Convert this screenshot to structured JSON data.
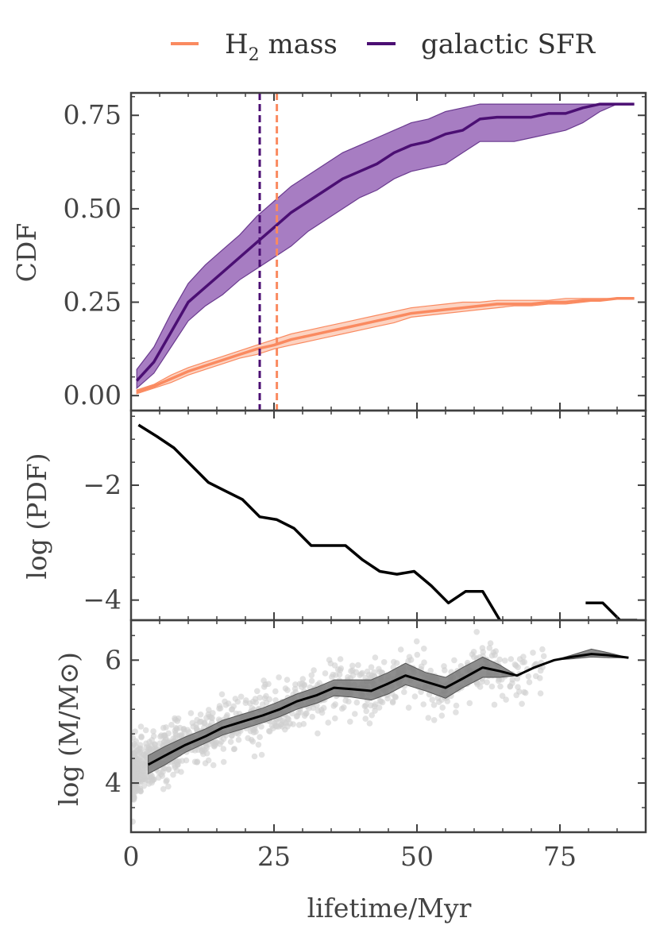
{
  "legend": {
    "items": [
      {
        "label": "H",
        "sub": "2",
        "suffix": " mass",
        "color": "#fa8a60"
      },
      {
        "label": "galactic SFR",
        "color": "#4b0f73"
      }
    ]
  },
  "chart_data": [
    {
      "type": "area",
      "panel": "cdf",
      "ylabel": "CDF",
      "xlim": [
        0,
        90
      ],
      "ylim": [
        -0.04,
        0.81
      ],
      "yticks": [
        0.0,
        0.25,
        0.5,
        0.75
      ],
      "ytick_labels": [
        "0.00",
        "0.25",
        "0.50",
        "0.75"
      ],
      "series": [
        {
          "name": "galactic SFR",
          "color": "#4b0f73",
          "band_color": "#8a52ad",
          "x": [
            1,
            4,
            7,
            10,
            13,
            16,
            19,
            22,
            25,
            28,
            31,
            34,
            37,
            40,
            43,
            46,
            49,
            52,
            55,
            58,
            61,
            64,
            67,
            70,
            73,
            76,
            79,
            82,
            85,
            88
          ],
          "values": [
            0.04,
            0.09,
            0.17,
            0.25,
            0.29,
            0.33,
            0.37,
            0.41,
            0.45,
            0.49,
            0.52,
            0.55,
            0.58,
            0.6,
            0.62,
            0.65,
            0.67,
            0.68,
            0.7,
            0.71,
            0.74,
            0.745,
            0.745,
            0.745,
            0.755,
            0.755,
            0.77,
            0.78,
            0.78,
            0.78
          ],
          "lower": [
            0.02,
            0.06,
            0.13,
            0.2,
            0.24,
            0.27,
            0.31,
            0.34,
            0.37,
            0.4,
            0.44,
            0.47,
            0.5,
            0.53,
            0.55,
            0.58,
            0.6,
            0.61,
            0.62,
            0.65,
            0.68,
            0.68,
            0.68,
            0.69,
            0.7,
            0.71,
            0.73,
            0.76,
            0.78,
            0.78
          ],
          "upper": [
            0.07,
            0.13,
            0.22,
            0.3,
            0.35,
            0.39,
            0.43,
            0.48,
            0.52,
            0.56,
            0.59,
            0.62,
            0.65,
            0.67,
            0.69,
            0.71,
            0.73,
            0.74,
            0.76,
            0.77,
            0.78,
            0.78,
            0.78,
            0.78,
            0.78,
            0.78,
            0.78,
            0.78,
            0.78,
            0.78
          ],
          "vline": 22.5
        },
        {
          "name": "H2 mass",
          "color": "#fa8a60",
          "band_color": "#fab599",
          "x": [
            1,
            4,
            7,
            10,
            13,
            16,
            19,
            22,
            25,
            28,
            31,
            34,
            37,
            40,
            43,
            46,
            49,
            52,
            55,
            58,
            61,
            64,
            67,
            70,
            73,
            76,
            79,
            82,
            85,
            88
          ],
          "values": [
            0.01,
            0.025,
            0.045,
            0.065,
            0.08,
            0.095,
            0.11,
            0.125,
            0.135,
            0.15,
            0.16,
            0.17,
            0.18,
            0.19,
            0.2,
            0.21,
            0.22,
            0.225,
            0.23,
            0.235,
            0.24,
            0.245,
            0.245,
            0.245,
            0.25,
            0.25,
            0.255,
            0.255,
            0.26,
            0.26
          ],
          "lower": [
            0.005,
            0.02,
            0.035,
            0.055,
            0.07,
            0.085,
            0.1,
            0.11,
            0.125,
            0.135,
            0.145,
            0.155,
            0.165,
            0.175,
            0.185,
            0.195,
            0.21,
            0.215,
            0.22,
            0.225,
            0.23,
            0.235,
            0.24,
            0.24,
            0.245,
            0.245,
            0.25,
            0.255,
            0.26,
            0.26
          ],
          "upper": [
            0.015,
            0.03,
            0.055,
            0.075,
            0.09,
            0.105,
            0.12,
            0.135,
            0.15,
            0.165,
            0.175,
            0.185,
            0.195,
            0.205,
            0.215,
            0.225,
            0.235,
            0.24,
            0.245,
            0.25,
            0.25,
            0.255,
            0.255,
            0.255,
            0.255,
            0.26,
            0.26,
            0.26,
            0.26,
            0.26
          ],
          "vline": 25.5
        }
      ]
    },
    {
      "type": "line",
      "panel": "pdf",
      "ylabel": "log (PDF)",
      "xlim": [
        0,
        90
      ],
      "ylim": [
        -4.35,
        -0.7
      ],
      "yticks": [
        -4,
        -2
      ],
      "ytick_labels": [
        "−4",
        "−2"
      ],
      "series": [
        {
          "name": "PDF",
          "color": "#000000",
          "segments": [
            {
              "x": [
                1.3,
                4.5,
                7.5,
                10.5,
                13.5,
                16.5,
                19.5,
                22.5,
                25.5,
                28.5,
                31.5,
                34.5,
                37.5,
                40.5,
                43.5,
                46.5,
                49.5,
                52.5,
                55.5,
                58.5,
                61.5,
                64.5
              ],
              "values": [
                -0.95,
                -1.15,
                -1.35,
                -1.65,
                -1.95,
                -2.1,
                -2.25,
                -2.55,
                -2.6,
                -2.75,
                -3.05,
                -3.05,
                -3.05,
                -3.3,
                -3.5,
                -3.55,
                -3.5,
                -3.75,
                -4.05,
                -3.85,
                -3.85,
                -4.35
              ]
            },
            {
              "x": [
                79.5,
                82.5,
                85.5,
                88.5
              ],
              "values": [
                -4.05,
                -4.05,
                -4.35,
                -4.35
              ]
            }
          ]
        }
      ]
    },
    {
      "type": "scatter",
      "panel": "mass",
      "ylabel": "log (M/M⊙)",
      "xlabel": "lifetime/Myr",
      "xlim": [
        0,
        90
      ],
      "ylim": [
        3.2,
        6.65
      ],
      "xticks": [
        0,
        25,
        50,
        75
      ],
      "xtick_labels": [
        "0",
        "25",
        "50",
        "75"
      ],
      "yticks": [
        4,
        6
      ],
      "ytick_labels": [
        "4",
        "6"
      ],
      "series": [
        {
          "name": "median mass",
          "color": "#000000",
          "band_color": "#7a7a7a",
          "x": [
            3,
            6,
            9.5,
            13,
            16,
            19.5,
            23,
            26,
            29,
            32.5,
            35.5,
            38.5,
            42,
            45,
            48,
            51.5,
            55,
            58,
            61.5,
            64.5,
            67.5,
            70.5,
            74,
            77,
            80.5,
            83.5,
            87
          ],
          "values": [
            4.3,
            4.45,
            4.62,
            4.76,
            4.9,
            5.0,
            5.1,
            5.2,
            5.33,
            5.43,
            5.55,
            5.53,
            5.5,
            5.62,
            5.75,
            5.65,
            5.55,
            5.7,
            5.88,
            5.82,
            5.75,
            5.88,
            6.0,
            6.05,
            6.1,
            6.08,
            6.04
          ],
          "lower": [
            4.15,
            4.3,
            4.5,
            4.65,
            4.78,
            4.88,
            4.98,
            5.08,
            5.2,
            5.3,
            5.42,
            5.4,
            5.35,
            5.45,
            5.6,
            5.5,
            5.38,
            5.55,
            5.72,
            5.72,
            5.75,
            5.88,
            6.0,
            6.02,
            6.05,
            6.04,
            6.04
          ],
          "upper": [
            4.45,
            4.6,
            4.75,
            4.88,
            5.02,
            5.12,
            5.22,
            5.33,
            5.45,
            5.56,
            5.68,
            5.68,
            5.68,
            5.8,
            5.95,
            5.8,
            5.72,
            5.88,
            6.05,
            5.92,
            5.75,
            5.88,
            6.0,
            6.08,
            6.18,
            6.12,
            6.04
          ]
        },
        {
          "name": "clouds",
          "color": "#cfcfcf",
          "sample_count": 1100,
          "seed": 12345,
          "description": "log mass rises with lifetime; dense cloud 4.0-5.2 at lifetimes 0-20 Myr"
        }
      ]
    }
  ]
}
